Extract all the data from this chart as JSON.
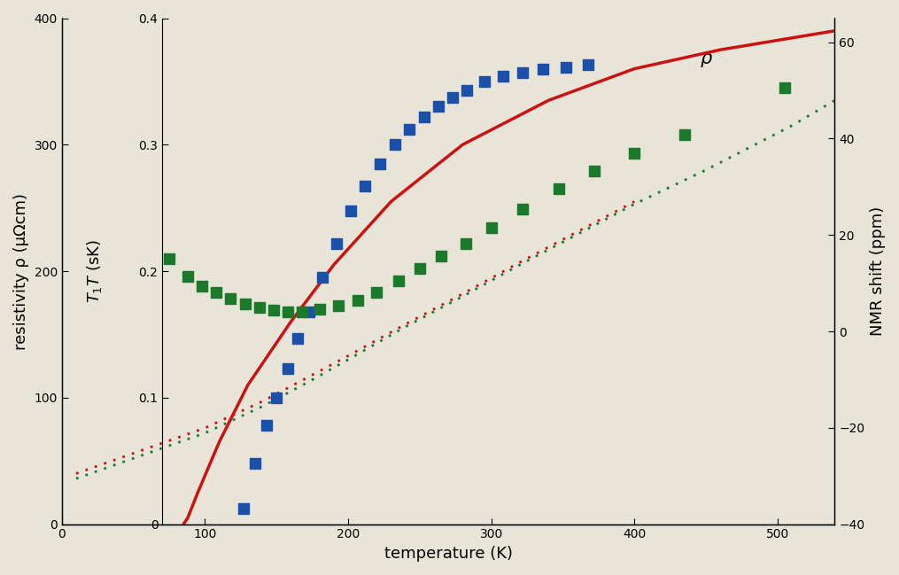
{
  "background_color": "#e8e4d8",
  "plot_bg_color": "#e8e4d8",
  "xlim": [
    0,
    540
  ],
  "ylim_left": [
    0,
    400
  ],
  "ylim_right": [
    -40,
    65
  ],
  "xlabel": "temperature (K)",
  "ylabel_left": "resistivity ρ (μΩcm)",
  "ylabel_right": "NMR shift (ppm)",
  "ylabel_middle": "$T_1 T$ (sK)",
  "left_ticks": [
    0,
    100,
    200,
    300,
    400
  ],
  "right_ticks": [
    -40,
    -20,
    0,
    20,
    40,
    60
  ],
  "xticks": [
    0,
    100,
    200,
    300,
    400,
    500
  ],
  "red_solid_x": [
    85,
    88,
    95,
    110,
    130,
    160,
    190,
    230,
    280,
    340,
    400,
    460,
    540
  ],
  "red_solid_y": [
    0,
    5,
    25,
    65,
    110,
    160,
    205,
    255,
    300,
    335,
    360,
    375,
    390
  ],
  "red_dotted_x": [
    10,
    60,
    100,
    140,
    170,
    200,
    240,
    280,
    320,
    360,
    400
  ],
  "red_dotted_y": [
    40,
    60,
    76,
    97,
    115,
    133,
    158,
    182,
    207,
    231,
    255
  ],
  "green_dotted_x": [
    10,
    60,
    100,
    140,
    170,
    200,
    240,
    280,
    320,
    360,
    400,
    450,
    510,
    540
  ],
  "green_dotted_y": [
    36,
    56,
    72,
    93,
    111,
    130,
    156,
    180,
    205,
    229,
    253,
    280,
    315,
    335
  ],
  "blue_squares_x": [
    127,
    135,
    143,
    150,
    158,
    165,
    173,
    182,
    192,
    202,
    212,
    222,
    233,
    243,
    253,
    263,
    273,
    283,
    295,
    308,
    322,
    336,
    352,
    368
  ],
  "blue_squares_y": [
    12,
    48,
    78,
    100,
    123,
    147,
    168,
    195,
    222,
    248,
    267,
    285,
    300,
    312,
    322,
    330,
    337,
    343,
    350,
    354,
    357,
    360,
    361,
    363
  ],
  "green_squares_x": [
    75,
    88,
    98,
    108,
    118,
    128,
    138,
    148,
    158,
    168,
    180,
    193,
    207,
    220,
    235,
    250,
    265,
    282,
    300,
    322,
    347,
    372,
    400,
    435,
    505
  ],
  "green_squares_y": [
    210,
    196,
    188,
    183,
    178,
    174,
    171,
    169,
    168,
    168,
    170,
    173,
    177,
    183,
    192,
    202,
    212,
    222,
    234,
    249,
    265,
    279,
    293,
    308,
    345
  ],
  "blue_color": "#1a4faa",
  "green_color": "#1a7a2a",
  "red_color": "#cc1111",
  "marker_size": 8,
  "t1t_ticks_pos": [
    0,
    100,
    200,
    300,
    400
  ],
  "t1t_ticks_labels": [
    "0",
    "0.1",
    "0.2",
    "0.3",
    "0.4"
  ]
}
